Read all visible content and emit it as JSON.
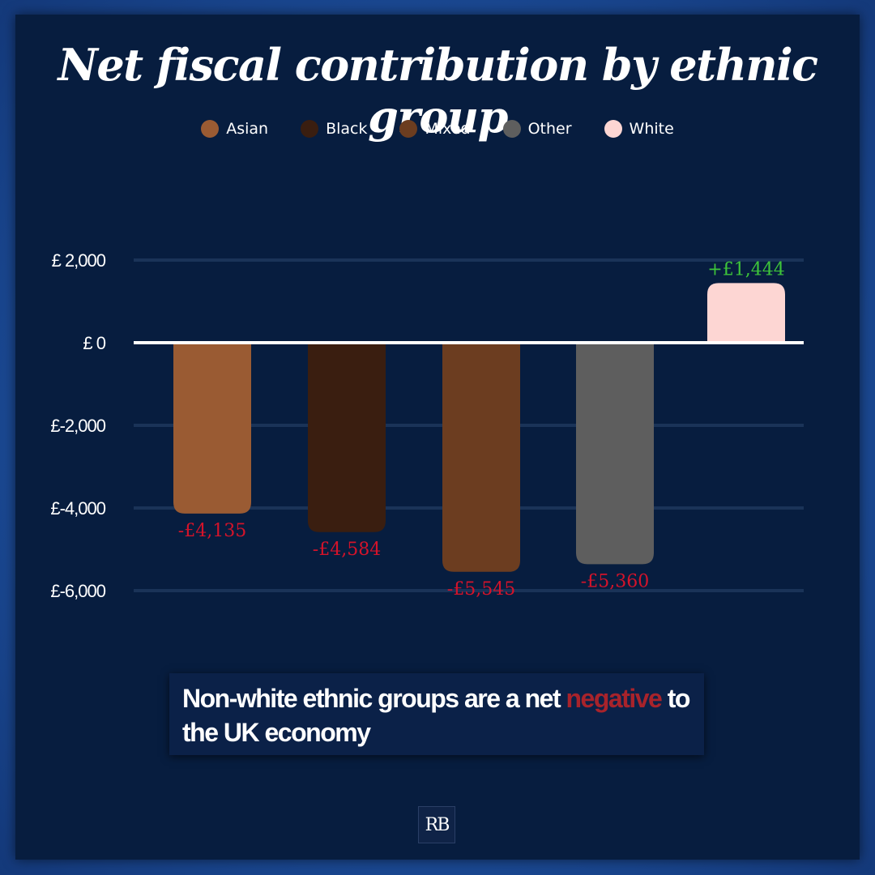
{
  "title": "Net fiscal contribution by ethnic group",
  "legend": [
    {
      "label": "Asian",
      "color": "#9a5b33"
    },
    {
      "label": "Black",
      "color": "#3a1e10"
    },
    {
      "label": "Mixed",
      "color": "#6c3d20"
    },
    {
      "label": "Other",
      "color": "#5e5e5e"
    },
    {
      "label": "White",
      "color": "#fdd6d3"
    }
  ],
  "chart_data": {
    "type": "bar",
    "title": "Net fiscal contribution by ethnic group",
    "categories": [
      "Asian",
      "Black",
      "Mixed",
      "Other",
      "White"
    ],
    "values": [
      -4135,
      -4584,
      -5545,
      -5360,
      1444
    ],
    "data_labels": [
      "-£4,135",
      "-£4,584",
      "-£5,545",
      "-£5,360",
      "+£1,444"
    ],
    "colors": [
      "#9a5b33",
      "#3a1e10",
      "#6c3d20",
      "#5e5e5e",
      "#fdd6d3"
    ],
    "yticks": [
      2000,
      0,
      -2000,
      -4000,
      -6000
    ],
    "ytick_labels": [
      "£ 2,000",
      "£ 0",
      "£-2,000",
      "£-4,000",
      "£-6,000"
    ],
    "ylim": [
      -6000,
      2000
    ],
    "negative_label_color": "#d4132a",
    "positive_label_color": "#3ec43a",
    "grid": true,
    "legend_position": "top"
  },
  "callout": {
    "before": "Non-white ethnic groups are a net ",
    "highlight": "negative",
    "after": " to the UK economy"
  },
  "logo": {
    "text": "RB"
  }
}
